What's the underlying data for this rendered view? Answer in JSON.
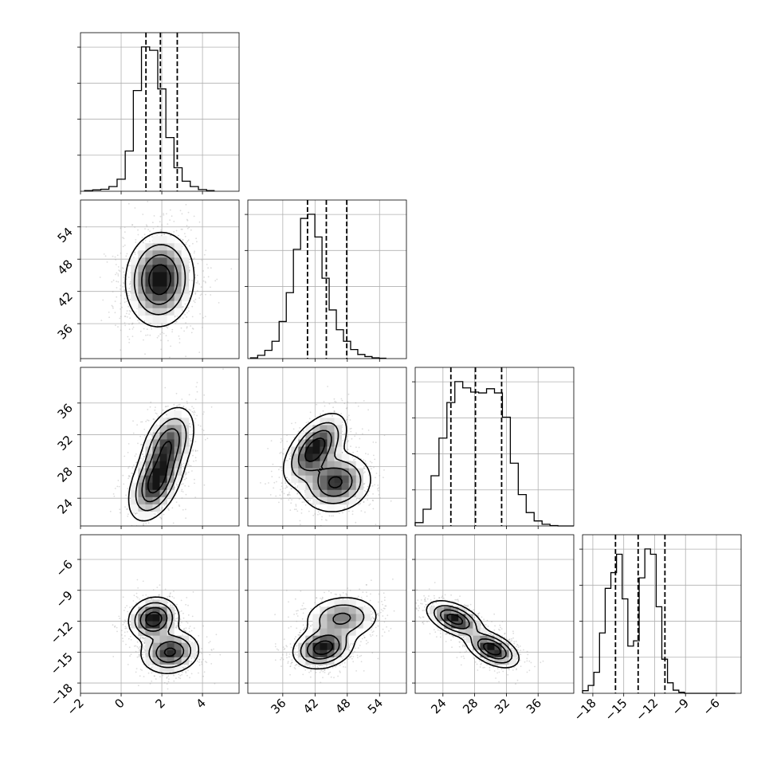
{
  "chart_data": {
    "type": "corner",
    "parameters": [
      {
        "key": "p1",
        "range": [
          -2,
          5.8
        ],
        "ticks": [
          -2,
          0,
          2,
          4
        ],
        "tick_labels": [
          "−2",
          "0",
          "2",
          "4"
        ],
        "mean": 1.9,
        "sd": 0.75,
        "quantiles": [
          1.22,
          1.93,
          2.76
        ]
      },
      {
        "key": "p2",
        "range": [
          29.5,
          59
        ],
        "ticks": [
          36,
          42,
          48,
          54
        ],
        "tick_labels": [
          "36",
          "42",
          "48",
          "54"
        ],
        "mean": 44.2,
        "sd": 3.9,
        "quantiles": [
          40.6,
          44.1,
          47.9
        ]
      },
      {
        "key": "p3",
        "range": [
          20.5,
          40.5
        ],
        "ticks": [
          24,
          28,
          32,
          36
        ],
        "tick_labels": [
          "24",
          "28",
          "32",
          "36"
        ],
        "mean": 28.2,
        "sd": 3.4,
        "quantiles": [
          25.0,
          28.1,
          31.4
        ]
      },
      {
        "key": "p4",
        "range": [
          -19,
          -3.6
        ],
        "ticks": [
          -18,
          -15,
          -12,
          -9,
          -6
        ],
        "tick_labels": [
          "−18",
          "−15",
          "−12",
          "−9",
          "−6"
        ],
        "mean": -13.6,
        "sd": 1.9,
        "quantiles": [
          -15.8,
          -13.6,
          -11.0
        ]
      }
    ],
    "histograms": [
      {
        "param": 0,
        "bin_start": -1.8,
        "bin_width": 0.4,
        "counts": [
          2,
          4,
          6,
          14,
          36,
          120,
          300,
          430,
          420,
          305,
          160,
          70,
          30,
          14,
          5,
          2
        ]
      },
      {
        "param": 1,
        "bin_start": 30,
        "bin_width": 1.33,
        "counts": [
          2,
          8,
          20,
          42,
          90,
          160,
          265,
          340,
          350,
          295,
          195,
          118,
          70,
          42,
          22,
          10,
          5,
          2,
          1
        ]
      },
      {
        "param": 2,
        "bin_start": 20.5,
        "bin_width": 1.0,
        "counts": [
          8,
          40,
          120,
          210,
          295,
          345,
          330,
          320,
          318,
          328,
          318,
          260,
          150,
          75,
          32,
          12,
          4,
          1,
          0,
          0
        ]
      },
      {
        "param": 3,
        "bin_start": -19,
        "bin_width": 0.55,
        "counts": [
          5,
          15,
          40,
          115,
          200,
          230,
          265,
          180,
          90,
          100,
          220,
          275,
          265,
          165,
          65,
          20,
          6,
          2,
          0,
          0,
          0,
          0,
          0,
          0,
          0,
          0,
          0
        ]
      }
    ],
    "pairs": [
      {
        "x": 0,
        "y": 1,
        "modes": [
          {
            "mx": 1.9,
            "my": 44.2,
            "sx": 0.75,
            "sy": 3.9,
            "rho": 0.05,
            "w": 1
          }
        ]
      },
      {
        "x": 0,
        "y": 2,
        "modes": [
          {
            "mx": 1.7,
            "my": 26.0,
            "sx": 0.6,
            "sy": 2.2,
            "rho": 0.45,
            "w": 0.55
          },
          {
            "mx": 2.3,
            "my": 30.8,
            "sx": 0.6,
            "sy": 2.2,
            "rho": 0.4,
            "w": 0.45
          }
        ]
      },
      {
        "x": 1,
        "y": 2,
        "modes": [
          {
            "mx": 42.0,
            "my": 30.2,
            "sx": 2.6,
            "sy": 2.0,
            "rho": 0.55,
            "w": 0.5
          },
          {
            "mx": 45.8,
            "my": 26.0,
            "sx": 3.0,
            "sy": 1.7,
            "rho": 0.1,
            "w": 0.5
          }
        ]
      },
      {
        "x": 0,
        "y": 3,
        "modes": [
          {
            "mx": 1.6,
            "my": -11.8,
            "sx": 0.55,
            "sy": 0.95,
            "rho": 0.1,
            "w": 0.5
          },
          {
            "mx": 2.4,
            "my": -15.0,
            "sx": 0.65,
            "sy": 0.95,
            "rho": 0.1,
            "w": 0.5
          }
        ]
      },
      {
        "x": 1,
        "y": 3,
        "modes": [
          {
            "mx": 43.5,
            "my": -14.6,
            "sx": 2.5,
            "sy": 0.9,
            "rho": 0.2,
            "w": 0.55
          },
          {
            "mx": 47.0,
            "my": -11.7,
            "sx": 3.2,
            "sy": 1.0,
            "rho": 0.1,
            "w": 0.45
          }
        ]
      },
      {
        "x": 2,
        "y": 3,
        "modes": [
          {
            "mx": 25.5,
            "my": -11.8,
            "sx": 1.6,
            "sy": 0.8,
            "rho": -0.5,
            "w": 0.5
          },
          {
            "mx": 30.2,
            "my": -14.7,
            "sx": 1.5,
            "sy": 0.8,
            "rho": -0.5,
            "w": 0.5
          }
        ]
      }
    ],
    "contour_levels": 4,
    "grid": true,
    "point_color": "#9a9a9a",
    "line_color": "#000000"
  }
}
